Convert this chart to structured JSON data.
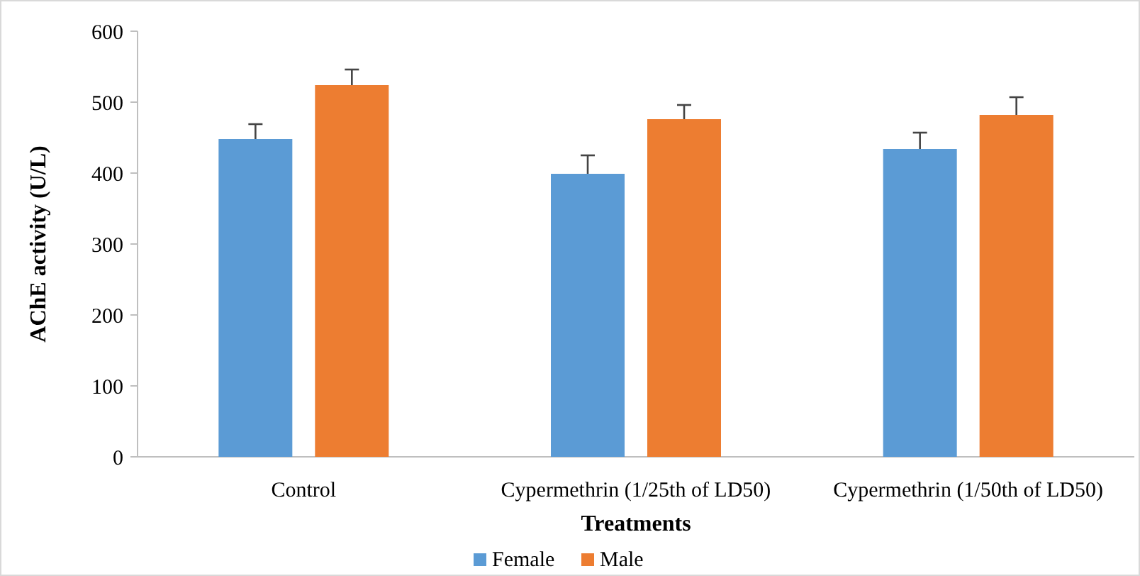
{
  "chart_data": {
    "type": "bar",
    "xlabel": "Treatments",
    "ylabel": "AChE activity (U/L)",
    "categories": [
      "Control",
      "Cypermethrin (1/25th of LD50)",
      "Cypermethrin (1/50th of LD50)"
    ],
    "series": [
      {
        "name": "Female",
        "color": "#5b9bd5",
        "values": [
          448,
          399,
          434
        ],
        "errors": [
          21,
          26,
          23
        ]
      },
      {
        "name": "Male",
        "color": "#ed7d31",
        "values": [
          524,
          476,
          482
        ],
        "errors": [
          22,
          20,
          25
        ]
      }
    ],
    "ylim": [
      0,
      600
    ],
    "yticks": [
      0,
      100,
      200,
      300,
      400,
      500,
      600
    ],
    "grid": false,
    "legend": "bottom"
  }
}
